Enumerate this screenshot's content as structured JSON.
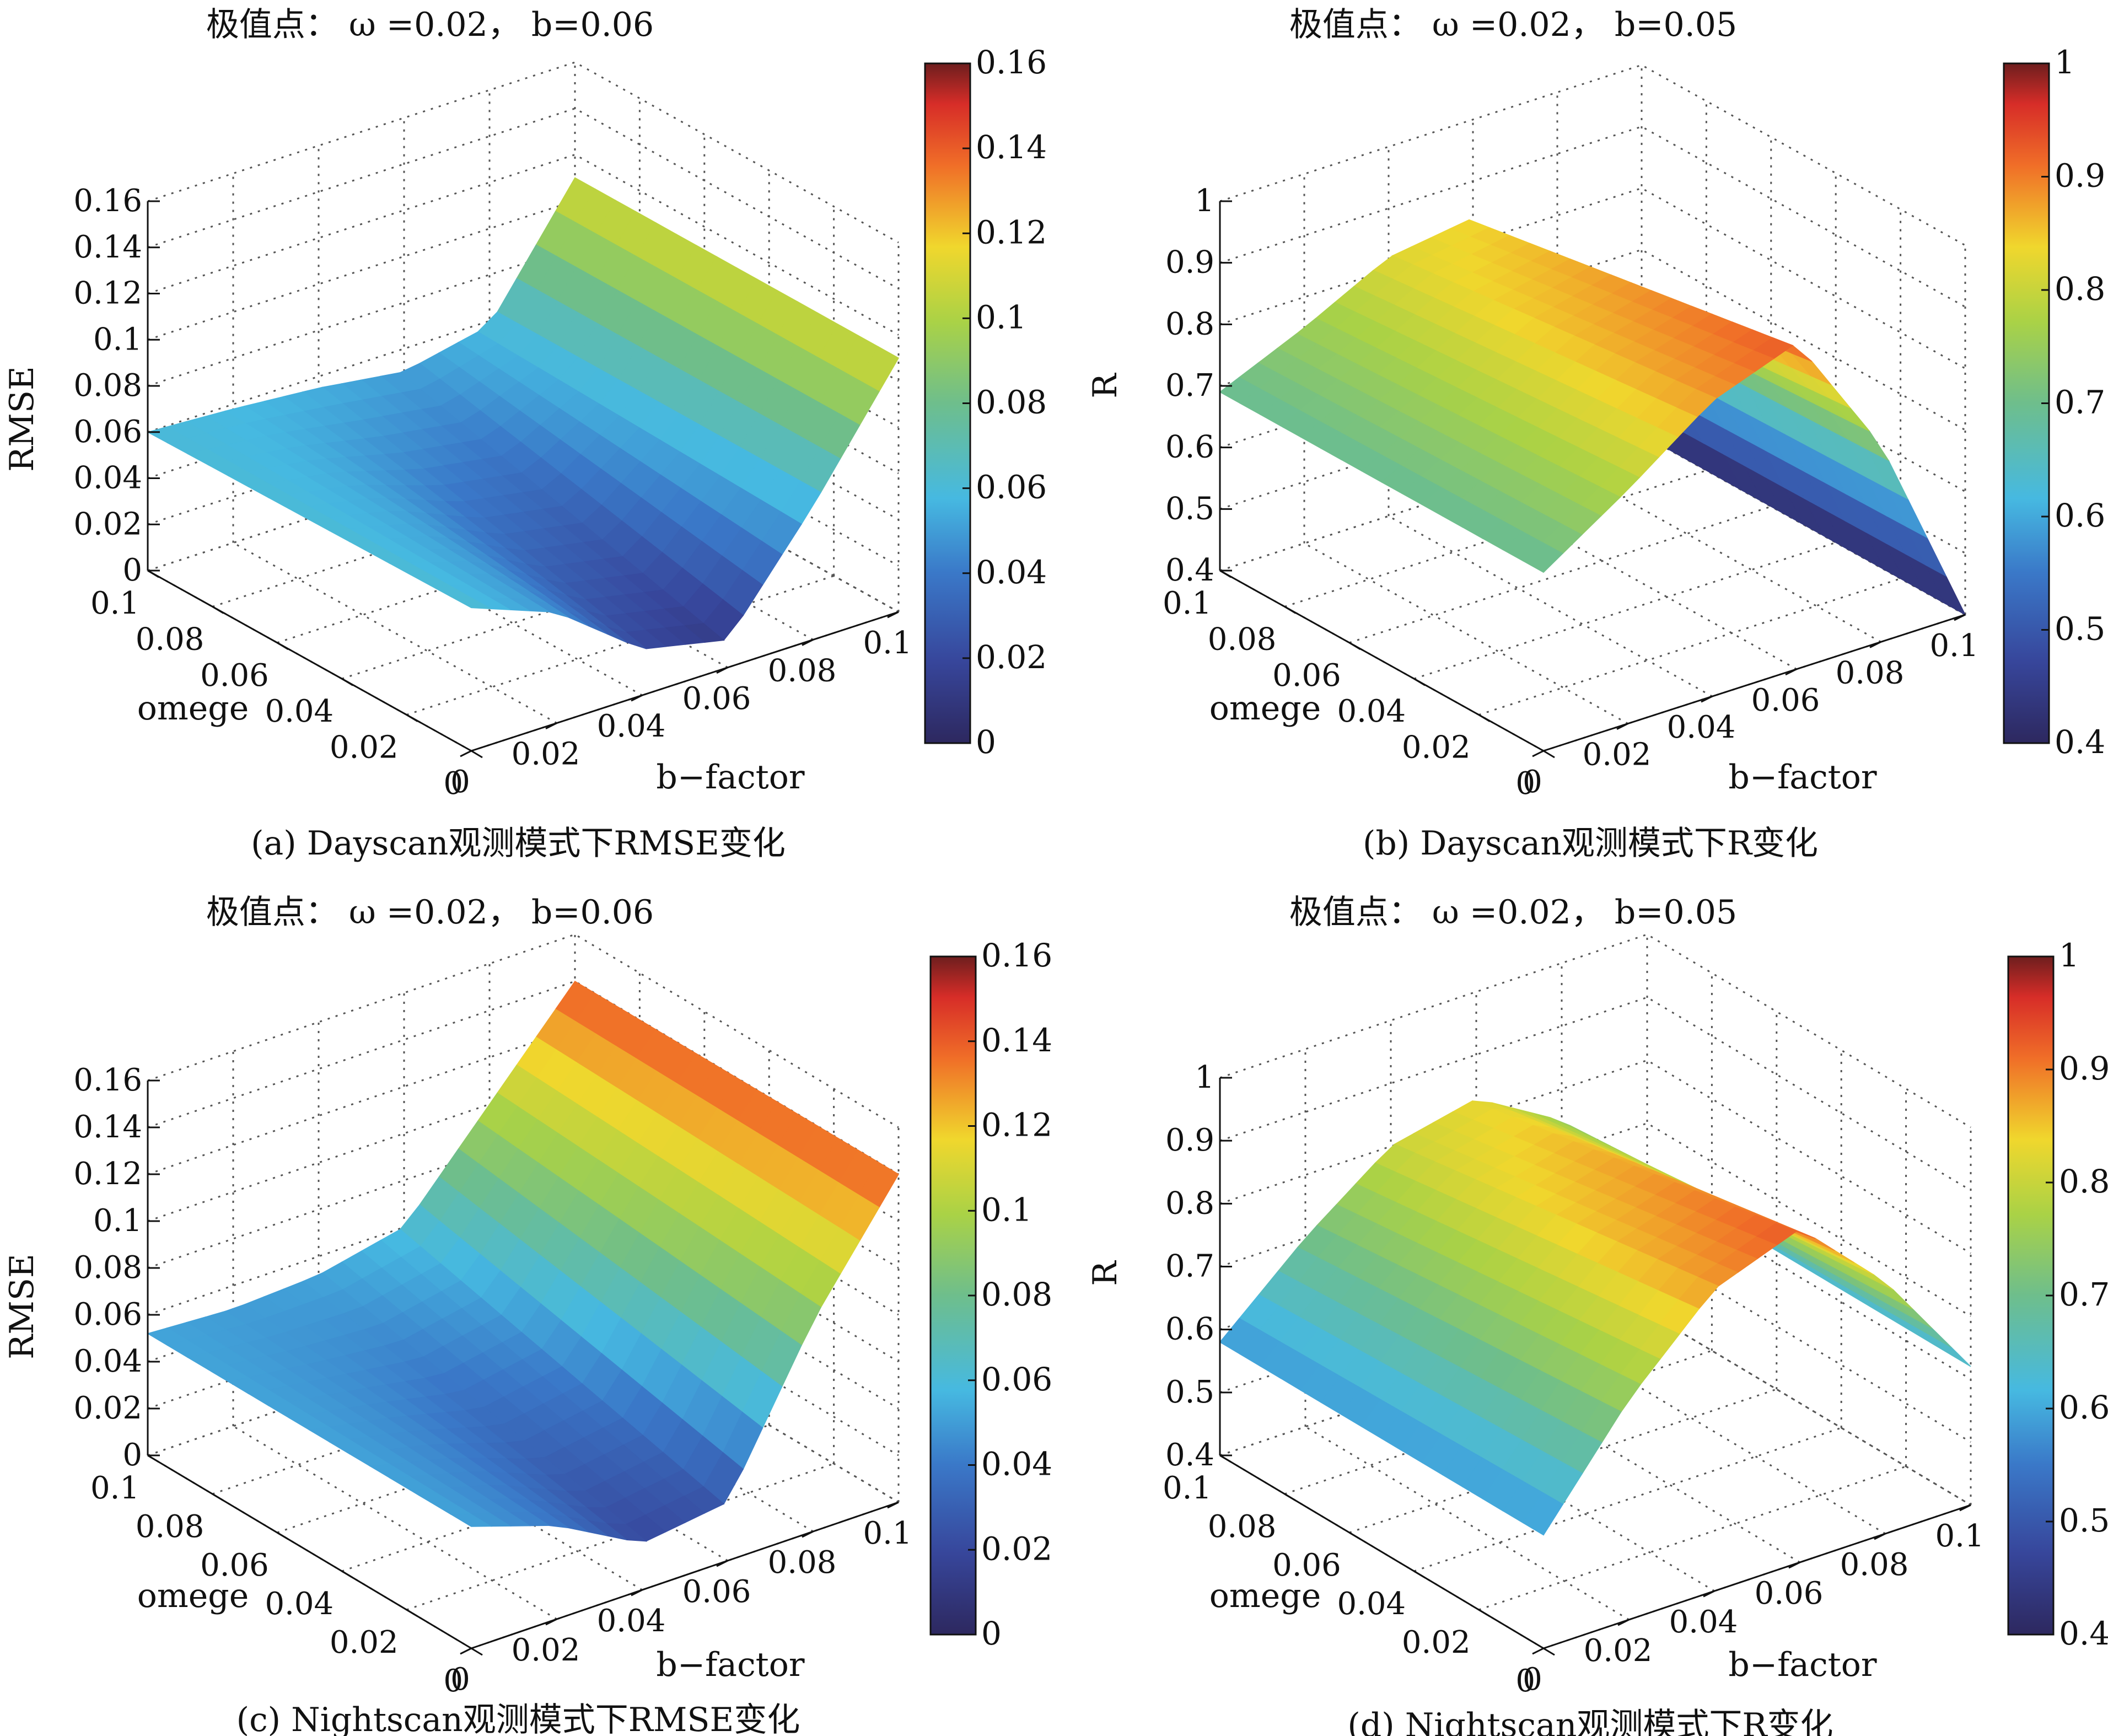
{
  "figure": {
    "panels": [
      {
        "id": "a",
        "title": "极值点：  ω =0.02， b=0.06",
        "caption": "(a) Dayscan观测模式下RMSE变化",
        "zlabel": "RMSE",
        "ylabel": "omege",
        "xlabel": "b−factor",
        "zticks": [
          "0",
          "0.02",
          "0.04",
          "0.06",
          "0.08",
          "0.1",
          "0.12",
          "0.14",
          "0.16"
        ],
        "yticks": [
          "0",
          "0.02",
          "0.04",
          "0.06",
          "0.08",
          "0.1"
        ],
        "xticks": [
          "0",
          "0.02",
          "0.04",
          "0.06",
          "0.08",
          "0.1"
        ],
        "colorbar_ticks": [
          "0",
          "0.02",
          "0.04",
          "0.06",
          "0.08",
          "0.1",
          "0.12",
          "0.14",
          "0.16"
        ]
      },
      {
        "id": "b",
        "title": "极值点：  ω =0.02， b=0.05",
        "caption": "(b) Dayscan观测模式下R变化",
        "zlabel": "R",
        "ylabel": "omege",
        "xlabel": "b−factor",
        "zticks": [
          "0.4",
          "0.5",
          "0.6",
          "0.7",
          "0.8",
          "0.9",
          "1"
        ],
        "yticks": [
          "0",
          "0.02",
          "0.04",
          "0.06",
          "0.08",
          "0.1"
        ],
        "xticks": [
          "0",
          "0.02",
          "0.04",
          "0.06",
          "0.08",
          "0.1"
        ],
        "colorbar_ticks": [
          "0.4",
          "0.5",
          "0.6",
          "0.7",
          "0.8",
          "0.9",
          "1"
        ]
      },
      {
        "id": "c",
        "title": "极值点：  ω =0.02， b=0.06",
        "caption": "(c) Nightscan观测模式下RMSE变化",
        "zlabel": "RMSE",
        "ylabel": "omege",
        "xlabel": "b−factor",
        "zticks": [
          "0",
          "0.02",
          "0.04",
          "0.06",
          "0.08",
          "0.1",
          "0.12",
          "0.14",
          "0.16"
        ],
        "yticks": [
          "0",
          "0.02",
          "0.04",
          "0.06",
          "0.08",
          "0.1"
        ],
        "xticks": [
          "0",
          "0.02",
          "0.04",
          "0.06",
          "0.08",
          "0.1"
        ],
        "colorbar_ticks": [
          "0",
          "0.02",
          "0.04",
          "0.06",
          "0.08",
          "0.1",
          "0.12",
          "0.14",
          "0.16"
        ]
      },
      {
        "id": "d",
        "title": "极值点：  ω =0.02， b=0.05",
        "caption": "(d) Nightscan观测模式下R变化",
        "zlabel": "R",
        "ylabel": "omege",
        "xlabel": "b−factor",
        "zticks": [
          "0.4",
          "0.5",
          "0.6",
          "0.7",
          "0.8",
          "0.9",
          "1"
        ],
        "yticks": [
          "0",
          "0.02",
          "0.04",
          "0.06",
          "0.08",
          "0.1"
        ],
        "xticks": [
          "0",
          "0.02",
          "0.04",
          "0.06",
          "0.08",
          "0.1"
        ],
        "colorbar_ticks": [
          "0.4",
          "0.5",
          "0.6",
          "0.7",
          "0.8",
          "0.9",
          "1"
        ]
      }
    ]
  },
  "chart_data": [
    {
      "type": "surface",
      "panel": "a",
      "x_name": "b-factor",
      "y_name": "omege",
      "z_name": "RMSE",
      "x": [
        0,
        0.02,
        0.04,
        0.06,
        0.08,
        0.1
      ],
      "y": [
        0,
        0.02,
        0.04,
        0.06,
        0.08,
        0.1
      ],
      "z_profile_along_x": [
        0.062,
        0.048,
        0.02,
        0.012,
        0.058,
        0.11
      ],
      "z_at_y_max": [
        0.06,
        0.058,
        0.055,
        0.05,
        0.058,
        0.11
      ],
      "xlim": [
        0,
        0.1
      ],
      "ylim": [
        0,
        0.1
      ],
      "zlim": [
        0,
        0.16
      ],
      "colormap": "jet",
      "clim": [
        0,
        0.16
      ],
      "grid": true,
      "extremum": {
        "omega": 0.02,
        "b": 0.06
      }
    },
    {
      "type": "surface",
      "panel": "b",
      "x_name": "b-factor",
      "y_name": "omege",
      "z_name": "R",
      "x": [
        0,
        0.02,
        0.04,
        0.06,
        0.08,
        0.1
      ],
      "y": [
        0,
        0.02,
        0.04,
        0.06,
        0.08,
        0.1
      ],
      "z_profile_along_x": [
        0.69,
        0.78,
        0.88,
        0.93,
        0.72,
        0.4
      ],
      "z_at_y_max": [
        0.69,
        0.75,
        0.82,
        0.84,
        0.7,
        0.4
      ],
      "xlim": [
        0,
        0.1
      ],
      "ylim": [
        0,
        0.1
      ],
      "zlim": [
        0.4,
        1
      ],
      "colormap": "jet",
      "clim": [
        0.4,
        1
      ],
      "grid": true,
      "extremum": {
        "omega": 0.02,
        "b": 0.05
      }
    },
    {
      "type": "surface",
      "panel": "c",
      "x_name": "b-factor",
      "y_name": "omege",
      "z_name": "RMSE",
      "x": [
        0,
        0.02,
        0.04,
        0.06,
        0.08,
        0.1
      ],
      "y": [
        0,
        0.02,
        0.04,
        0.06,
        0.08,
        0.1
      ],
      "z_profile_along_x": [
        0.052,
        0.04,
        0.02,
        0.025,
        0.09,
        0.14
      ],
      "z_at_y_max": [
        0.052,
        0.05,
        0.052,
        0.06,
        0.1,
        0.14
      ],
      "xlim": [
        0,
        0.1
      ],
      "ylim": [
        0,
        0.1
      ],
      "zlim": [
        0,
        0.16
      ],
      "colormap": "jet",
      "clim": [
        0,
        0.16
      ],
      "grid": true,
      "extremum": {
        "omega": 0.02,
        "b": 0.06
      }
    },
    {
      "type": "surface",
      "panel": "d",
      "x_name": "b-factor",
      "y_name": "omege",
      "z_name": "R",
      "x": [
        0,
        0.02,
        0.04,
        0.06,
        0.08,
        0.1
      ],
      "y": [
        0,
        0.02,
        0.04,
        0.06,
        0.08,
        0.1
      ],
      "z_profile_along_x": [
        0.58,
        0.75,
        0.88,
        0.93,
        0.8,
        0.62
      ],
      "z_at_y_max": [
        0.58,
        0.7,
        0.8,
        0.83,
        0.75,
        0.62
      ],
      "xlim": [
        0,
        0.1
      ],
      "ylim": [
        0,
        0.1
      ],
      "zlim": [
        0.4,
        1
      ],
      "colormap": "jet",
      "clim": [
        0.4,
        1
      ],
      "grid": true,
      "extremum": {
        "omega": 0.02,
        "b": 0.05
      }
    }
  ]
}
